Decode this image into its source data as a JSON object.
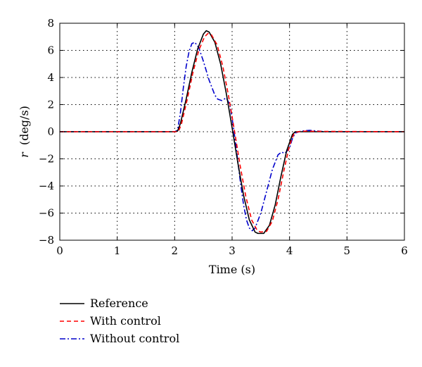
{
  "chart_data": {
    "type": "line",
    "xlabel": "Time (s)",
    "ylabel": {
      "symbol": "r",
      "unit": "(deg/s)"
    },
    "xlim": [
      0,
      6
    ],
    "ylim": [
      -8,
      8
    ],
    "xticks": [
      "0",
      "1",
      "2",
      "3",
      "4",
      "5",
      "6"
    ],
    "yticks": [
      "8",
      "6",
      "4",
      "2",
      "0",
      "−2",
      "−4",
      "−6",
      "−8"
    ],
    "grid": true,
    "legend_position": "bottom-left, below plot",
    "series": [
      {
        "name": "Reference",
        "color": "#000000",
        "style": "solid",
        "points": [
          [
            0,
            0
          ],
          [
            2.0,
            0
          ],
          [
            2.05,
            0.05
          ],
          [
            2.1,
            0.6
          ],
          [
            2.2,
            2.4
          ],
          [
            2.3,
            4.4
          ],
          [
            2.4,
            6.1
          ],
          [
            2.5,
            7.2
          ],
          [
            2.55,
            7.45
          ],
          [
            2.6,
            7.35
          ],
          [
            2.7,
            6.6
          ],
          [
            2.8,
            5.0
          ],
          [
            2.9,
            2.8
          ],
          [
            3.0,
            0.3
          ],
          [
            3.1,
            -2.3
          ],
          [
            3.2,
            -4.7
          ],
          [
            3.3,
            -6.5
          ],
          [
            3.4,
            -7.4
          ],
          [
            3.45,
            -7.5
          ],
          [
            3.55,
            -7.5
          ],
          [
            3.65,
            -6.9
          ],
          [
            3.75,
            -5.4
          ],
          [
            3.85,
            -3.3
          ],
          [
            3.95,
            -1.4
          ],
          [
            4.05,
            -0.2
          ],
          [
            4.1,
            0
          ],
          [
            6,
            0
          ]
        ]
      },
      {
        "name": "With control",
        "color": "#ff0000",
        "style": "dashed",
        "points": [
          [
            0,
            0
          ],
          [
            2.02,
            0
          ],
          [
            2.07,
            0.05
          ],
          [
            2.12,
            0.6
          ],
          [
            2.22,
            2.4
          ],
          [
            2.32,
            4.4
          ],
          [
            2.42,
            6.0
          ],
          [
            2.52,
            7.0
          ],
          [
            2.58,
            7.25
          ],
          [
            2.64,
            7.15
          ],
          [
            2.74,
            6.4
          ],
          [
            2.84,
            4.8
          ],
          [
            2.94,
            2.6
          ],
          [
            3.04,
            0.1
          ],
          [
            3.14,
            -2.5
          ],
          [
            3.24,
            -4.8
          ],
          [
            3.34,
            -6.5
          ],
          [
            3.44,
            -7.3
          ],
          [
            3.5,
            -7.4
          ],
          [
            3.6,
            -7.35
          ],
          [
            3.7,
            -6.6
          ],
          [
            3.8,
            -5.0
          ],
          [
            3.9,
            -2.9
          ],
          [
            4.0,
            -1.0
          ],
          [
            4.08,
            -0.1
          ],
          [
            4.15,
            0
          ],
          [
            4.3,
            0.05
          ],
          [
            4.4,
            0.03
          ],
          [
            6,
            0
          ]
        ]
      },
      {
        "name": "Without control",
        "color": "#0000cc",
        "style": "dashdot",
        "points": [
          [
            0,
            0
          ],
          [
            2.0,
            0
          ],
          [
            2.05,
            0.1
          ],
          [
            2.1,
            1.4
          ],
          [
            2.15,
            3.2
          ],
          [
            2.2,
            4.8
          ],
          [
            2.25,
            5.9
          ],
          [
            2.3,
            6.5
          ],
          [
            2.35,
            6.6
          ],
          [
            2.42,
            6.2
          ],
          [
            2.5,
            5.2
          ],
          [
            2.6,
            3.8
          ],
          [
            2.7,
            2.7
          ],
          [
            2.75,
            2.4
          ],
          [
            2.82,
            2.3
          ],
          [
            2.9,
            2.5
          ],
          [
            2.96,
            2.0
          ],
          [
            3.0,
            1.0
          ],
          [
            3.05,
            -0.5
          ],
          [
            3.1,
            -2.2
          ],
          [
            3.15,
            -3.9
          ],
          [
            3.2,
            -5.4
          ],
          [
            3.25,
            -6.5
          ],
          [
            3.3,
            -7.1
          ],
          [
            3.35,
            -7.3
          ],
          [
            3.4,
            -7.1
          ],
          [
            3.5,
            -6.0
          ],
          [
            3.6,
            -4.4
          ],
          [
            3.7,
            -2.8
          ],
          [
            3.8,
            -1.7
          ],
          [
            3.86,
            -1.5
          ],
          [
            3.92,
            -1.6
          ],
          [
            4.0,
            -1.2
          ],
          [
            4.05,
            -0.5
          ],
          [
            4.1,
            -0.1
          ],
          [
            4.2,
            0.05
          ],
          [
            4.35,
            0.1
          ],
          [
            4.5,
            0.05
          ],
          [
            4.6,
            0
          ],
          [
            6,
            0
          ]
        ]
      }
    ]
  }
}
